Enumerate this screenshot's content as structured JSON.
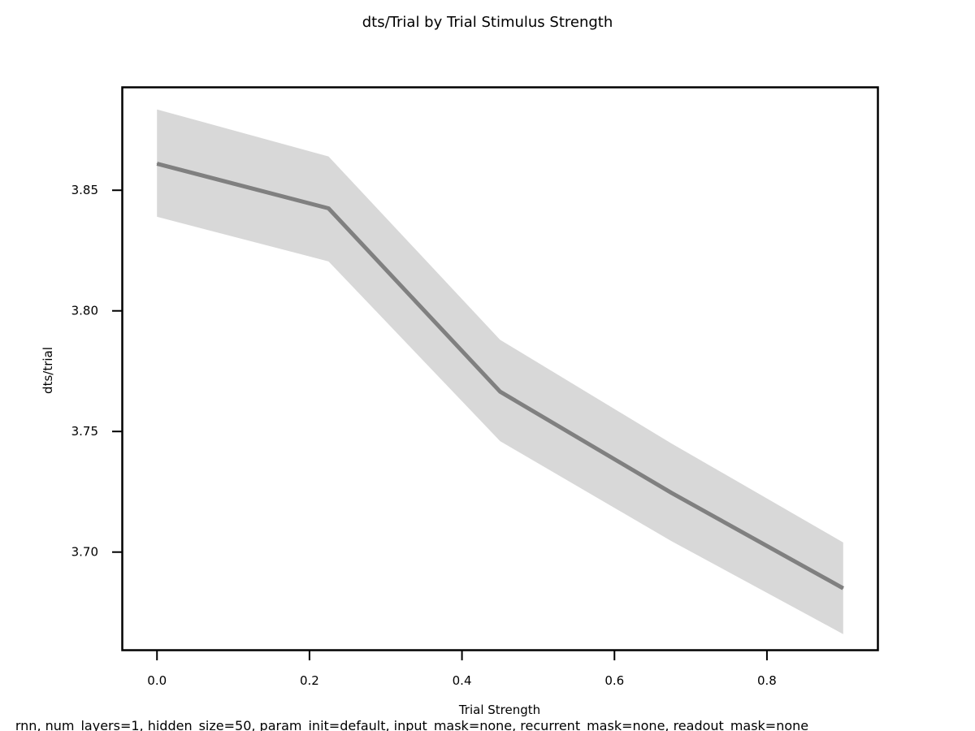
{
  "chart_data": {
    "type": "line",
    "title": "dts/Trial by Trial Stimulus Strength",
    "xlabel": "Trial Strength",
    "ylabel": "dts/trial",
    "caption": "rnn, num_layers=1, hidden_size=50, param_init=default, input_mask=none, recurrent_mask=none, readout_mask=none",
    "xlim": [
      -0.045,
      0.945
    ],
    "ylim": [
      3.6595,
      3.8925
    ],
    "x_ticks": [
      0.0,
      0.2,
      0.4,
      0.6,
      0.8
    ],
    "x_tick_labels": [
      "0.0",
      "0.2",
      "0.4",
      "0.6",
      "0.8"
    ],
    "y_ticks": [
      3.7,
      3.75,
      3.8,
      3.85
    ],
    "y_tick_labels": [
      "3.70",
      "3.75",
      "3.80",
      "3.85"
    ],
    "grid": false,
    "series": [
      {
        "x": [
          0.0,
          0.225,
          0.45,
          0.675,
          0.9
        ],
        "y": [
          3.861,
          3.8425,
          3.7665,
          3.7245,
          3.685
        ],
        "lower": [
          3.839,
          3.8205,
          3.746,
          3.7045,
          3.666
        ],
        "upper": [
          3.8835,
          3.864,
          3.788,
          3.745,
          3.704
        ],
        "color": "#808080",
        "band_color": "#d8d8d8"
      }
    ]
  }
}
